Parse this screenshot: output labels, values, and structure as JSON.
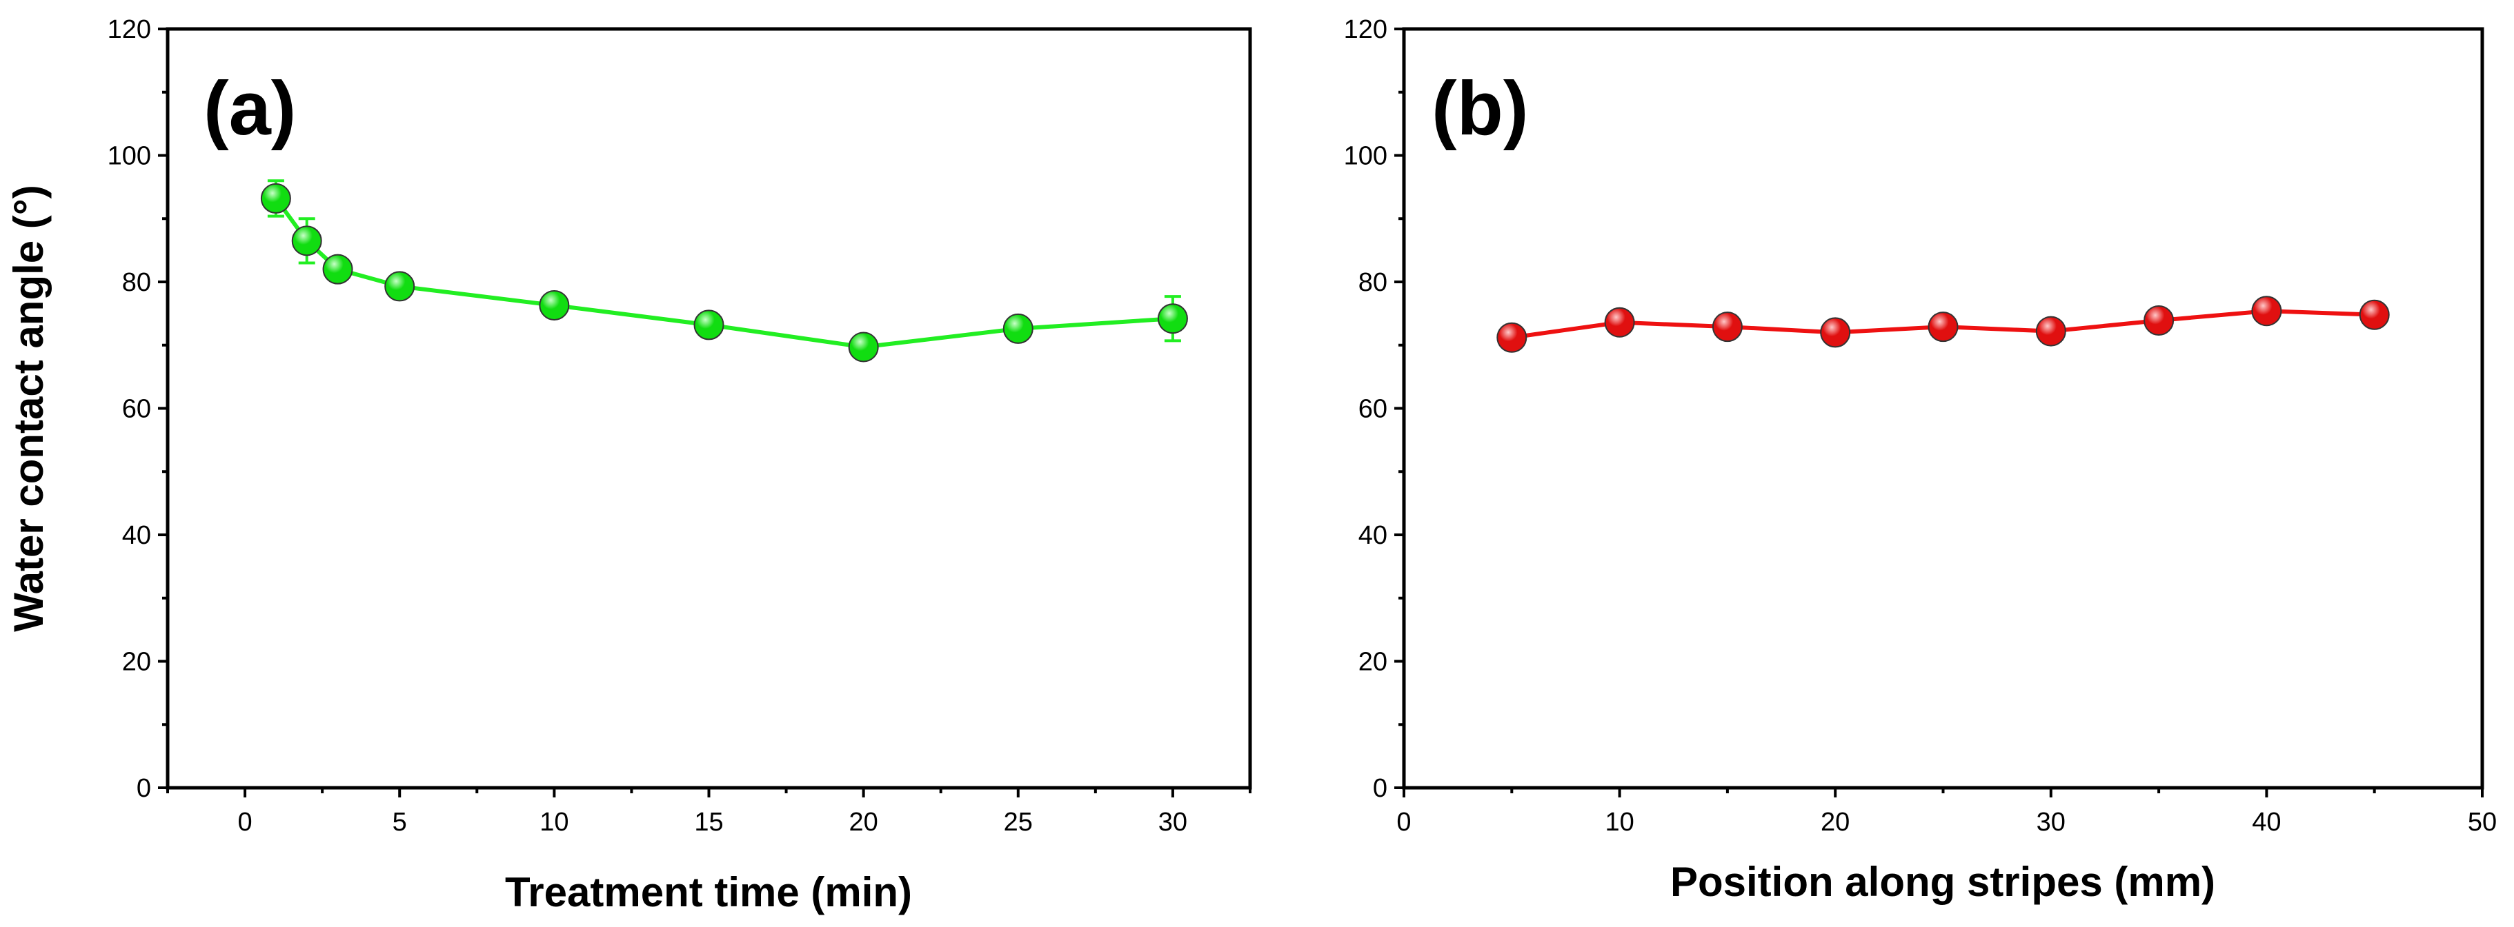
{
  "chart_data": [
    {
      "type": "line",
      "panel_label": "(a)",
      "xlabel": "Treatment time (min)",
      "ylabel": "Water contact angle (°)",
      "xlim": [
        -2.5,
        32.5
      ],
      "ylim": [
        0,
        120
      ],
      "xticks": [
        0,
        5,
        10,
        15,
        20,
        25,
        30
      ],
      "yticks": [
        0,
        20,
        40,
        60,
        80,
        100,
        120
      ],
      "xtick_labels": [
        "0",
        "5",
        "10",
        "15",
        "20",
        "25",
        "30"
      ],
      "ytick_labels": [
        "0",
        "20",
        "40",
        "60",
        "80",
        "100",
        "120"
      ],
      "color": "#22ee22",
      "marker_color": "#11dd11",
      "marker_highlight": "#c8ffc8",
      "series": [
        {
          "name": "Water contact angle",
          "x": [
            1,
            2,
            3,
            5,
            10,
            15,
            20,
            25,
            30
          ],
          "y": [
            93.2,
            86.5,
            82.0,
            79.3,
            76.3,
            73.2,
            69.7,
            72.6,
            74.2
          ],
          "error": [
            2.8,
            3.5,
            1.2,
            0.8,
            1.0,
            0.8,
            0.8,
            0.8,
            3.5
          ]
        }
      ]
    },
    {
      "type": "line",
      "panel_label": "(b)",
      "xlabel": "Position along stripes (mm)",
      "ylabel": "",
      "xlim": [
        0,
        50
      ],
      "ylim": [
        0,
        120
      ],
      "xticks": [
        0,
        10,
        20,
        30,
        40,
        50
      ],
      "yticks": [
        0,
        20,
        40,
        60,
        80,
        100,
        120
      ],
      "xtick_labels": [
        "0",
        "10",
        "20",
        "30",
        "40",
        "50"
      ],
      "ytick_labels": [
        "0",
        "20",
        "40",
        "60",
        "80",
        "100",
        "120"
      ],
      "color": "#ee1111",
      "marker_color": "#e01010",
      "marker_highlight": "#ffc8c8",
      "series": [
        {
          "name": "Water contact angle",
          "x": [
            5,
            10,
            15,
            20,
            25,
            30,
            35,
            40,
            45
          ],
          "y": [
            71.2,
            73.6,
            72.9,
            72.0,
            72.9,
            72.2,
            73.9,
            75.4,
            74.8
          ],
          "error": [
            0.6,
            0.6,
            0.6,
            0.6,
            0.6,
            0.6,
            0.6,
            0.6,
            0.6
          ]
        }
      ]
    }
  ]
}
